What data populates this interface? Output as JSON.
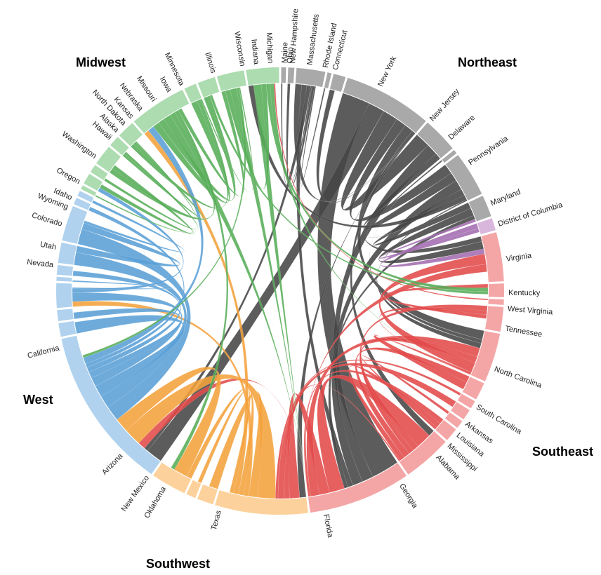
{
  "regions": [
    {
      "name": "Northeast",
      "arc_color": "#a9a9a9",
      "chord_color": "#454545"
    },
    {
      "name": "Southeast",
      "arc_color": "#f4a6a6",
      "chord_color": "#e34a4a"
    },
    {
      "name": "Southwest",
      "arc_color": "#fdd19b",
      "chord_color": "#f4a23c"
    },
    {
      "name": "West",
      "arc_color": "#b0d2ee",
      "chord_color": "#5a9fd6"
    },
    {
      "name": "Midwest",
      "arc_color": "#acdcb0",
      "chord_color": "#56ad58"
    },
    {
      "name": "",
      "arc_color": "#d9b6dc",
      "chord_color": "#a36cb0"
    }
  ],
  "chart_data": {
    "type": "chord",
    "groups": [
      {
        "name": "Maine",
        "region": "Northeast",
        "value": 0.35,
        "label_deg": 1.2
      },
      {
        "name": "New Hampshire",
        "region": "Northeast",
        "value": 0.45,
        "label_deg": 3.2
      },
      {
        "name": "Massachusetts",
        "region": "Northeast",
        "value": 2.1,
        "label_deg": 7.5
      },
      {
        "name": "Rhode Island",
        "region": "Northeast",
        "value": 0.3,
        "label_deg": 11.5
      },
      {
        "name": "Connecticut",
        "region": "Northeast",
        "value": 0.9,
        "label_deg": 14.0
      },
      {
        "name": "New York",
        "region": "Northeast",
        "value": 6.5,
        "label_deg": 26.0
      },
      {
        "name": "New Jersey",
        "region": "Northeast",
        "value": 2.6,
        "label_deg": 41.5
      },
      {
        "name": "Delaware",
        "region": "Northeast",
        "value": 0.3,
        "label_deg": 48.0
      },
      {
        "name": "Pennsylvania",
        "region": "Northeast",
        "value": 3.3,
        "label_deg": 56.0
      },
      {
        "name": "Maryland",
        "region": "Northeast",
        "value": 1.6,
        "label_deg": 67.5
      },
      {
        "name": "District of Columbia",
        "region": "",
        "value": 0.9,
        "label_deg": 73.0
      },
      {
        "name": "Virginia",
        "region": "Southeast",
        "value": 3.6,
        "label_deg": 82.0
      },
      {
        "name": "Kentucky",
        "region": "Southeast",
        "value": 1.0,
        "label_deg": 90.5
      },
      {
        "name": "West Virginia",
        "region": "Southeast",
        "value": 0.4,
        "label_deg": 94.5
      },
      {
        "name": "Tennessee",
        "region": "Southeast",
        "value": 1.8,
        "label_deg": 99.5
      },
      {
        "name": "North Carolina",
        "region": "Southeast",
        "value": 3.6,
        "label_deg": 110.0
      },
      {
        "name": "South Carolina",
        "region": "Southeast",
        "value": 1.3,
        "label_deg": 120.5
      },
      {
        "name": "Arkansas",
        "region": "Southeast",
        "value": 0.6,
        "label_deg": 125.5
      },
      {
        "name": "Louisiana",
        "region": "Southeast",
        "value": 0.8,
        "label_deg": 129.0
      },
      {
        "name": "Mississippi",
        "region": "Southeast",
        "value": 0.6,
        "label_deg": 132.5
      },
      {
        "name": "Alabama",
        "region": "Southeast",
        "value": 1.0,
        "label_deg": 136.5
      },
      {
        "name": "Georgia",
        "region": "Southeast",
        "value": 3.6,
        "label_deg": 148.0
      },
      {
        "name": "Florida",
        "region": "Southeast",
        "value": 7.5,
        "label_deg": 168.5
      },
      {
        "name": "Texas",
        "region": "Southwest",
        "value": 6.8,
        "label_deg": 195.5
      },
      {
        "name": "Oklahoma",
        "region": "Southwest",
        "value": 1.2,
        "label_deg": 210.5
      },
      {
        "name": "New Mexico",
        "region": "Southwest",
        "value": 0.7,
        "label_deg": 215.5
      },
      {
        "name": "Arizona",
        "region": "Southwest",
        "value": 2.6,
        "label_deg": 224.0
      },
      {
        "name": "California",
        "region": "West",
        "value": 12.0,
        "label_deg": 255.5
      },
      {
        "name": "Nevada",
        "region": "West",
        "value": 1.0,
        "label_deg": 276.5
      },
      {
        "name": "Utah",
        "region": "West",
        "value": 0.8,
        "label_deg": 281.0
      },
      {
        "name": "Colorado",
        "region": "West",
        "value": 1.8,
        "label_deg": 287.0
      },
      {
        "name": "Wyoming",
        "region": "West",
        "value": 0.3,
        "label_deg": 291.5
      },
      {
        "name": "Idaho",
        "region": "West",
        "value": 0.7,
        "label_deg": 294.0
      },
      {
        "name": "Oregon",
        "region": "West",
        "value": 1.5,
        "label_deg": 298.5
      },
      {
        "name": "Washington",
        "region": "West",
        "value": 2.6,
        "label_deg": 306.0
      },
      {
        "name": "Hawaii",
        "region": "West",
        "value": 0.5,
        "label_deg": 312.0
      },
      {
        "name": "Alaska",
        "region": "West",
        "value": 0.4,
        "label_deg": 314.5
      },
      {
        "name": "North Dakota",
        "region": "Midwest",
        "value": 0.3,
        "label_deg": 317.0
      },
      {
        "name": "Kansas",
        "region": "Midwest",
        "value": 0.8,
        "label_deg": 319.5
      },
      {
        "name": "Nebraska",
        "region": "Midwest",
        "value": 0.6,
        "label_deg": 322.5
      },
      {
        "name": "Missouri",
        "region": "Midwest",
        "value": 1.5,
        "label_deg": 326.5
      },
      {
        "name": "Iowa",
        "region": "Midwest",
        "value": 0.8,
        "label_deg": 331.0
      },
      {
        "name": "Minnesota",
        "region": "Midwest",
        "value": 1.3,
        "label_deg": 334.5
      },
      {
        "name": "Illinois",
        "region": "Midwest",
        "value": 4.2,
        "label_deg": 343.0
      },
      {
        "name": "Wisconsin",
        "region": "Midwest",
        "value": 0.9,
        "label_deg": 350.5
      },
      {
        "name": "Indiana",
        "region": "Midwest",
        "value": 1.3,
        "label_deg": 354.0
      },
      {
        "name": "Michigan",
        "region": "Midwest",
        "value": 2.0,
        "label_deg": 357.5
      },
      {
        "name": "Ohio",
        "region": "Midwest",
        "value": 2.4,
        "label_deg": 362.5
      }
    ],
    "flows": [
      {
        "source": "New York",
        "target": "Florida",
        "value": 2.2
      },
      {
        "source": "New York",
        "target": "California",
        "value": 1.3
      },
      {
        "source": "New York",
        "target": "New Jersey",
        "value": 1.2
      },
      {
        "source": "New York",
        "target": "Pennsylvania",
        "value": 0.8
      },
      {
        "source": "New York",
        "target": "North Carolina",
        "value": 0.7
      },
      {
        "source": "New York",
        "target": "Georgia",
        "value": 0.5
      },
      {
        "source": "New York",
        "target": "Massachusetts",
        "value": 0.5
      },
      {
        "source": "New York",
        "target": "Texas",
        "value": 0.5
      },
      {
        "source": "New York",
        "target": "Connecticut",
        "value": 0.4
      },
      {
        "source": "New York",
        "target": "Virginia",
        "value": 0.4
      },
      {
        "source": "New Jersey",
        "target": "Florida",
        "value": 0.9
      },
      {
        "source": "New Jersey",
        "target": "Pennsylvania",
        "value": 0.7
      },
      {
        "source": "New Jersey",
        "target": "North Carolina",
        "value": 0.3
      },
      {
        "source": "Pennsylvania",
        "target": "Florida",
        "value": 0.8
      },
      {
        "source": "Pennsylvania",
        "target": "Maryland",
        "value": 0.5
      },
      {
        "source": "Pennsylvania",
        "target": "Ohio",
        "value": 0.4
      },
      {
        "source": "Pennsylvania",
        "target": "North Carolina",
        "value": 0.4
      },
      {
        "source": "Massachusetts",
        "target": "Florida",
        "value": 0.4
      },
      {
        "source": "Massachusetts",
        "target": "California",
        "value": 0.3
      },
      {
        "source": "Maryland",
        "target": "Virginia",
        "value": 0.6
      },
      {
        "source": "Maryland",
        "target": "Florida",
        "value": 0.3
      },
      {
        "source": "District of Columbia",
        "target": "Virginia",
        "value": 0.4
      },
      {
        "source": "District of Columbia",
        "target": "Maryland",
        "value": 0.3
      },
      {
        "source": "Florida",
        "target": "Georgia",
        "value": 1.2
      },
      {
        "source": "Florida",
        "target": "Texas",
        "value": 0.8
      },
      {
        "source": "Florida",
        "target": "North Carolina",
        "value": 0.7
      },
      {
        "source": "Florida",
        "target": "Alabama",
        "value": 0.4
      },
      {
        "source": "Florida",
        "target": "California",
        "value": 0.6
      },
      {
        "source": "Georgia",
        "target": "North Carolina",
        "value": 0.5
      },
      {
        "source": "Georgia",
        "target": "Tennessee",
        "value": 0.4
      },
      {
        "source": "Georgia",
        "target": "South Carolina",
        "value": 0.5
      },
      {
        "source": "Georgia",
        "target": "Alabama",
        "value": 0.4
      },
      {
        "source": "Georgia",
        "target": "Texas",
        "value": 0.4
      },
      {
        "source": "Virginia",
        "target": "North Carolina",
        "value": 0.8
      },
      {
        "source": "Virginia",
        "target": "Florida",
        "value": 0.6
      },
      {
        "source": "North Carolina",
        "target": "South Carolina",
        "value": 0.6
      },
      {
        "source": "North Carolina",
        "target": "Tennessee",
        "value": 0.3
      },
      {
        "source": "Tennessee",
        "target": "Kentucky",
        "value": 0.3
      },
      {
        "source": "Louisiana",
        "target": "Texas",
        "value": 0.5
      },
      {
        "source": "Arkansas",
        "target": "Texas",
        "value": 0.2
      },
      {
        "source": "Mississippi",
        "target": "Alabama",
        "value": 0.2
      },
      {
        "source": "Texas",
        "target": "California",
        "value": 1.4
      },
      {
        "source": "Texas",
        "target": "Oklahoma",
        "value": 0.7
      },
      {
        "source": "Texas",
        "target": "Colorado",
        "value": 0.4
      },
      {
        "source": "Texas",
        "target": "Arizona",
        "value": 0.4
      },
      {
        "source": "Texas",
        "target": "Illinois",
        "value": 0.4
      },
      {
        "source": "Arizona",
        "target": "California",
        "value": 1.1
      },
      {
        "source": "New Mexico",
        "target": "Texas",
        "value": 0.3
      },
      {
        "source": "California",
        "target": "Washington",
        "value": 1.2
      },
      {
        "source": "California",
        "target": "Oregon",
        "value": 1.0
      },
      {
        "source": "California",
        "target": "Nevada",
        "value": 0.9
      },
      {
        "source": "California",
        "target": "Colorado",
        "value": 0.7
      },
      {
        "source": "California",
        "target": "Utah",
        "value": 0.5
      },
      {
        "source": "California",
        "target": "Idaho",
        "value": 0.4
      },
      {
        "source": "California",
        "target": "Hawaii",
        "value": 0.3
      },
      {
        "source": "California",
        "target": "Illinois",
        "value": 0.5
      },
      {
        "source": "Washington",
        "target": "Oregon",
        "value": 0.5
      },
      {
        "source": "Washington",
        "target": "Alaska",
        "value": 0.2
      },
      {
        "source": "Colorado",
        "target": "Kansas",
        "value": 0.3
      },
      {
        "source": "Illinois",
        "target": "Wisconsin",
        "value": 0.5
      },
      {
        "source": "Illinois",
        "target": "Indiana",
        "value": 0.5
      },
      {
        "source": "Illinois",
        "target": "Florida",
        "value": 0.6
      },
      {
        "source": "Illinois",
        "target": "Missouri",
        "value": 0.4
      },
      {
        "source": "Illinois",
        "target": "Arizona",
        "value": 0.3
      },
      {
        "source": "Illinois",
        "target": "Michigan",
        "value": 0.3
      },
      {
        "source": "Ohio",
        "target": "Florida",
        "value": 0.6
      },
      {
        "source": "Ohio",
        "target": "Michigan",
        "value": 0.4
      },
      {
        "source": "Ohio",
        "target": "Kentucky",
        "value": 0.3
      },
      {
        "source": "Ohio",
        "target": "North Carolina",
        "value": 0.3
      },
      {
        "source": "Michigan",
        "target": "Florida",
        "value": 0.5
      },
      {
        "source": "Michigan",
        "target": "California",
        "value": 0.2
      },
      {
        "source": "Minnesota",
        "target": "Wisconsin",
        "value": 0.3
      },
      {
        "source": "Minnesota",
        "target": "Iowa",
        "value": 0.2
      },
      {
        "source": "Missouri",
        "target": "Kansas",
        "value": 0.3
      },
      {
        "source": "Iowa",
        "target": "Nebraska",
        "value": 0.2
      },
      {
        "source": "Indiana",
        "target": "Kentucky",
        "value": 0.2
      },
      {
        "source": "Wisconsin",
        "target": "Michigan",
        "value": 0.1
      },
      {
        "source": "Maine",
        "target": "Massachusetts",
        "value": 0.1
      },
      {
        "source": "New Hampshire",
        "target": "Massachusetts",
        "value": 0.2
      },
      {
        "source": "Rhode Island",
        "target": "Massachusetts",
        "value": 0.1
      },
      {
        "source": "Delaware",
        "target": "Pennsylvania",
        "value": 0.1
      },
      {
        "source": "West Virginia",
        "target": "Ohio",
        "value": 0.1
      },
      {
        "source": "North Dakota",
        "target": "Minnesota",
        "value": 0.1
      },
      {
        "source": "Wyoming",
        "target": "Colorado",
        "value": 0.1
      }
    ]
  }
}
